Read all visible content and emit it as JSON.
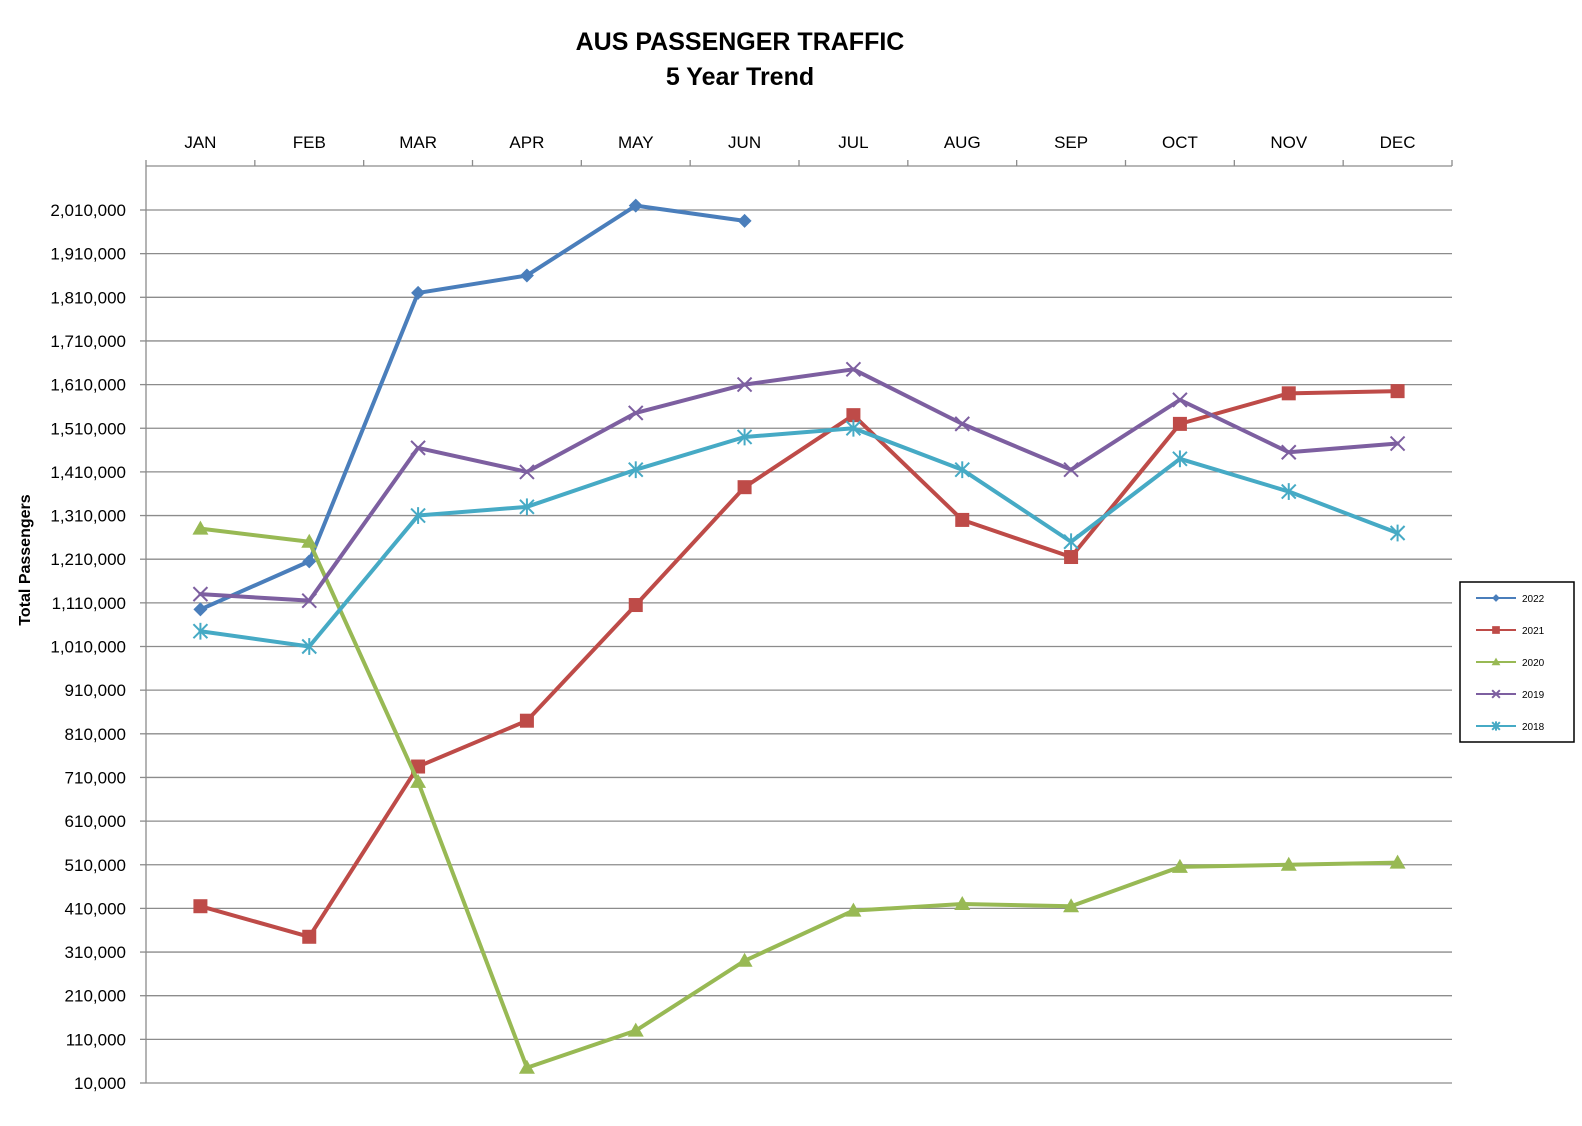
{
  "chart_data": {
    "type": "line",
    "title": "AUS PASSENGER TRAFFIC",
    "subtitle": "5 Year Trend",
    "xlabel": "",
    "ylabel": "Total Passengers",
    "categories": [
      "JAN",
      "FEB",
      "MAR",
      "APR",
      "MAY",
      "JUN",
      "JUL",
      "AUG",
      "SEP",
      "OCT",
      "NOV",
      "DEC"
    ],
    "ylim": [
      10000,
      2010000
    ],
    "yticks": [
      10000,
      110000,
      210000,
      310000,
      410000,
      510000,
      610000,
      710000,
      810000,
      910000,
      1010000,
      1110000,
      1210000,
      1310000,
      1410000,
      1510000,
      1610000,
      1710000,
      1810000,
      1910000,
      2010000
    ],
    "ytick_labels": [
      "10,000",
      "110,000",
      "210,000",
      "310,000",
      "410,000",
      "510,000",
      "610,000",
      "710,000",
      "810,000",
      "910,000",
      "1,010,000",
      "1,110,000",
      "1,210,000",
      "1,310,000",
      "1,410,000",
      "1,510,000",
      "1,610,000",
      "1,710,000",
      "1,810,000",
      "1,910,000",
      "2,010,000"
    ],
    "grid": true,
    "legend_position": "right",
    "series": [
      {
        "name": "2022",
        "color": "#4a7ebb",
        "marker": "diamond",
        "values": [
          1095000,
          1205000,
          1820000,
          1860000,
          2020000,
          1985000,
          null,
          null,
          null,
          null,
          null,
          null
        ]
      },
      {
        "name": "2021",
        "color": "#be4b48",
        "marker": "square",
        "values": [
          415000,
          345000,
          735000,
          840000,
          1105000,
          1375000,
          1540000,
          1300000,
          1215000,
          1520000,
          1590000,
          1595000
        ]
      },
      {
        "name": "2020",
        "color": "#98b954",
        "marker": "triangle",
        "values": [
          1280000,
          1250000,
          700000,
          45000,
          130000,
          290000,
          405000,
          420000,
          415000,
          505000,
          510000,
          515000
        ]
      },
      {
        "name": "2019",
        "color": "#7d5fa0",
        "marker": "x",
        "values": [
          1130000,
          1115000,
          1465000,
          1410000,
          1545000,
          1610000,
          1645000,
          1520000,
          1415000,
          1575000,
          1455000,
          1475000
        ]
      },
      {
        "name": "2018",
        "color": "#46aac5",
        "marker": "asterisk",
        "values": [
          1045000,
          1010000,
          1310000,
          1330000,
          1415000,
          1490000,
          1510000,
          1415000,
          1250000,
          1440000,
          1365000,
          1270000
        ]
      }
    ]
  }
}
